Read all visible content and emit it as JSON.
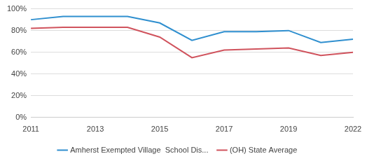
{
  "chart_data": {
    "type": "line",
    "categories": [
      "2011",
      null,
      "2013",
      null,
      "2015",
      null,
      "2017",
      null,
      "2019",
      null,
      "2022"
    ],
    "series": [
      {
        "name": "Amherst Exempted Village  School Dis...",
        "color": "#2f8fcf",
        "values": [
          90,
          93,
          93,
          93,
          87,
          71,
          79,
          79,
          80,
          69,
          72
        ]
      },
      {
        "name": "(OH) State Average",
        "color": "#d0535d",
        "values": [
          82,
          83,
          83,
          83,
          74,
          55,
          62,
          63,
          64,
          57,
          60
        ]
      }
    ],
    "ylim": [
      0,
      100
    ],
    "yticks": [
      {
        "value": 0,
        "label": "0%"
      },
      {
        "value": 20,
        "label": "20%"
      },
      {
        "value": 40,
        "label": "40%"
      },
      {
        "value": 60,
        "label": "60%"
      },
      {
        "value": 80,
        "label": "80%"
      },
      {
        "value": 100,
        "label": "100%"
      }
    ],
    "grid": true,
    "legend": "bottom"
  }
}
